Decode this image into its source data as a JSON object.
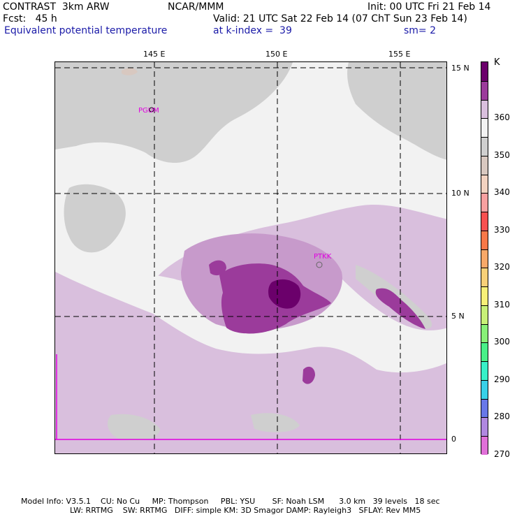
{
  "header": {
    "line1_left": "CONTRAST  3km ARW",
    "line1_center": "NCAR/MMM",
    "line1_right": "Init: 00 UTC Fri 21 Feb 14",
    "line2_left": "Fcst:   45 h",
    "line2_right": "Valid: 21 UTC Sat 22 Feb 14 (07 ChT Sun 23 Feb 14)",
    "line3_left": "Equivalent potential temperature",
    "line3_center": "at k-index =  39",
    "line3_right": "sm= 2"
  },
  "map": {
    "lon_labels": [
      "145 E",
      "150 E",
      "155 E"
    ],
    "lat_labels": [
      "15 N",
      "10 N",
      "5 N",
      "0"
    ],
    "stations": [
      "PGUM",
      "PTKK"
    ]
  },
  "colorbar": {
    "unit": "K",
    "labels": [
      "360",
      "350",
      "340",
      "330",
      "320",
      "310",
      "300",
      "290",
      "280",
      "270"
    ],
    "colors": [
      "#6b006b",
      "#9b3b9b",
      "#d9bfdd",
      "#f2f2f2",
      "#cfcfcf",
      "#d8c8c0",
      "#f2d2c0",
      "#f8a0a0",
      "#f85050",
      "#f87848",
      "#f8a868",
      "#f8d078",
      "#f8f078",
      "#c8f078",
      "#88f078",
      "#48f088",
      "#38f0c8",
      "#38d0e8",
      "#6878e8",
      "#b088e0",
      "#e070d8"
    ]
  },
  "footer": {
    "line1": "Model Info: V3.5.1    CU: No Cu     MP: Thompson     PBL: YSU       SF: Noah LSM      3.0 km   39 levels   18 sec",
    "line2": "LW: RRTMG    SW: RRTMG   DIFF: simple KM: 3D Smagor DAMP: Rayleigh3   SFLAY: Rev MM5"
  }
}
